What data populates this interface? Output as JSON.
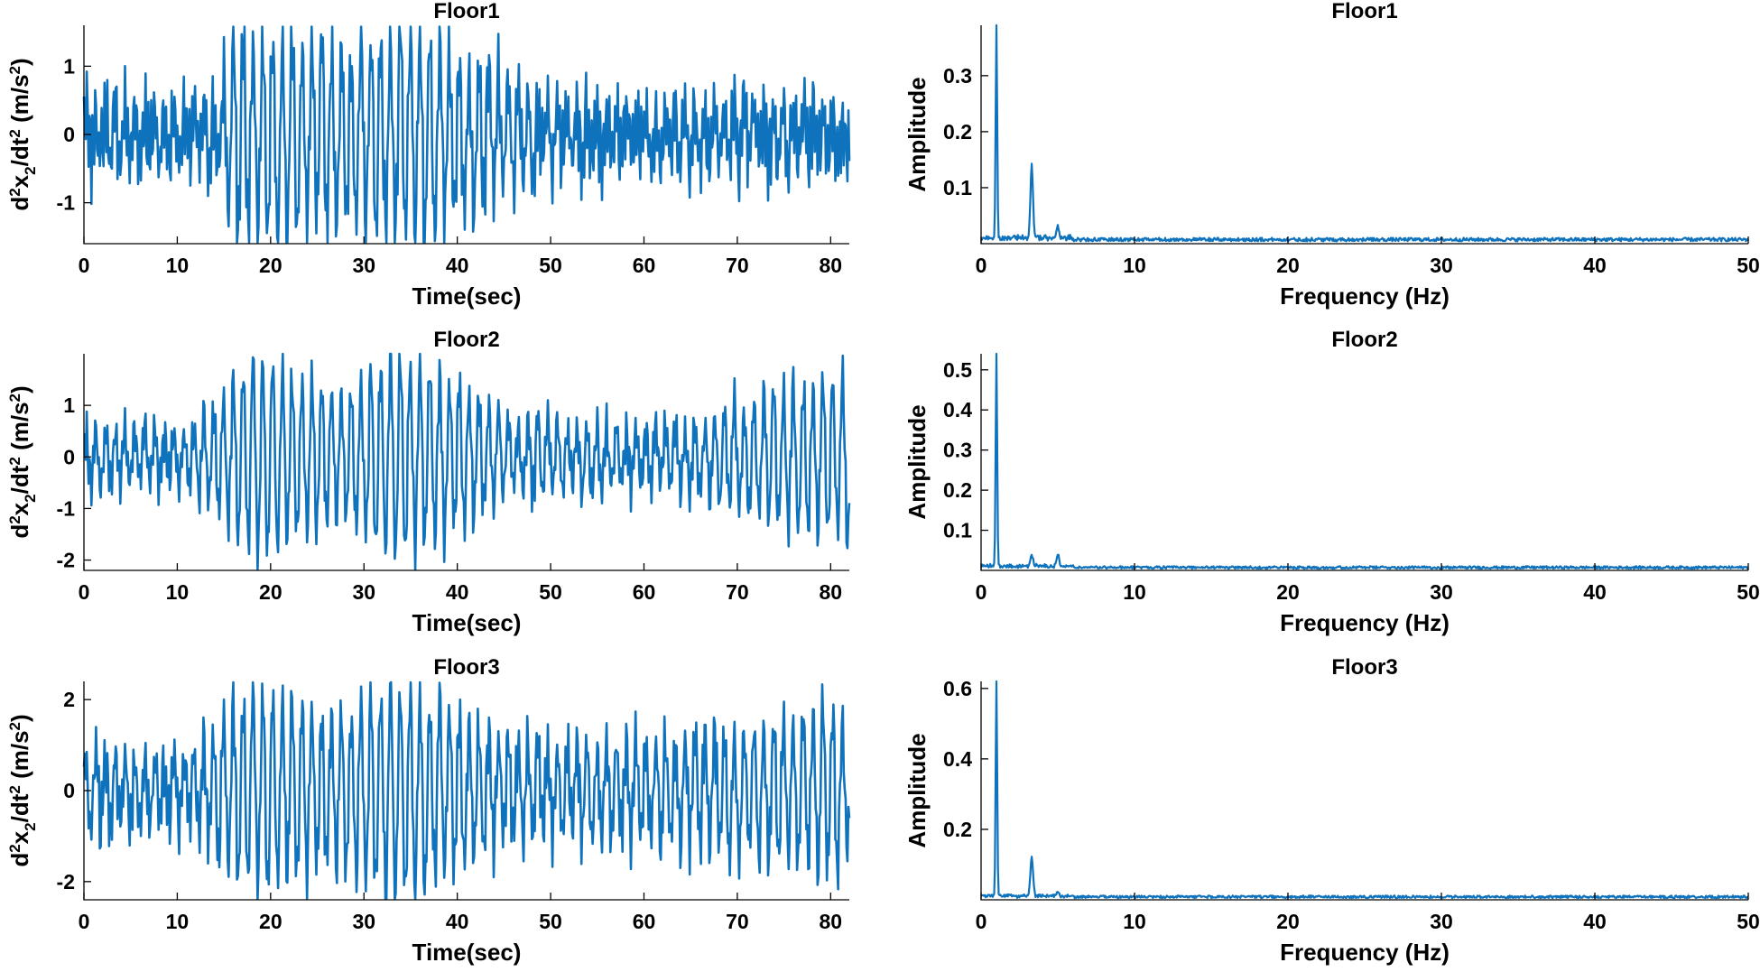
{
  "figure": {
    "series_color": "#0f72bc"
  },
  "chart_data": [
    {
      "id": "time-floor1",
      "type": "line",
      "title": "Floor1",
      "xlabel": "Time(sec)",
      "ylabel": "d^2x_2/dt^2 (m/s^2)",
      "xlim": [
        0,
        82
      ],
      "ylim": [
        -1.6,
        1.6
      ],
      "xticks": [
        0,
        10,
        20,
        30,
        40,
        50,
        60,
        70,
        80
      ],
      "yticks": [
        -1,
        0,
        1
      ],
      "signal": {
        "t_end": 82,
        "samples_per_sec": 10,
        "base_amp": 0.45,
        "dom_freq_hz": 0.95,
        "sec_freq_hz": 3.2,
        "envelope": [
          [
            0,
            0.32
          ],
          [
            14,
            0.32
          ],
          [
            16,
            1.4
          ],
          [
            22,
            1.5
          ],
          [
            27,
            1.1
          ],
          [
            35,
            1.55
          ],
          [
            40,
            1.2
          ],
          [
            46,
            0.6
          ],
          [
            50,
            0.3
          ],
          [
            82,
            0.3
          ]
        ],
        "peak_abs": 1.58
      }
    },
    {
      "id": "freq-floor1",
      "type": "line",
      "title": "Floor1",
      "xlabel": "Frequency (Hz)",
      "ylabel": "Amplitude",
      "xlim": [
        0,
        50
      ],
      "ylim": [
        0,
        0.39
      ],
      "xticks": [
        0,
        10,
        20,
        30,
        40,
        50
      ],
      "yticks": [
        0.1,
        0.2,
        0.3
      ],
      "spectrum": {
        "noise_floor": 0.007,
        "peaks": [
          [
            1.0,
            0.39
          ],
          [
            3.3,
            0.13
          ],
          [
            5.0,
            0.02
          ]
        ]
      }
    },
    {
      "id": "time-floor2",
      "type": "line",
      "title": "Floor2",
      "xlabel": "Time(sec)",
      "ylabel": "d^2x_2/dt^2 (m/s^2)",
      "xlim": [
        0,
        82
      ],
      "ylim": [
        -2.2,
        2.0
      ],
      "xticks": [
        0,
        10,
        20,
        30,
        40,
        50,
        60,
        70,
        80
      ],
      "yticks": [
        -2,
        -1,
        0,
        1
      ],
      "signal": {
        "t_end": 82,
        "samples_per_sec": 10,
        "base_amp": 0.35,
        "dom_freq_hz": 0.95,
        "sec_freq_hz": 3.2,
        "envelope": [
          [
            0,
            0.5
          ],
          [
            10,
            0.45
          ],
          [
            14,
            0.8
          ],
          [
            18,
            1.9
          ],
          [
            24,
            1.4
          ],
          [
            28,
            1.1
          ],
          [
            33,
            1.95
          ],
          [
            40,
            1.4
          ],
          [
            46,
            0.7
          ],
          [
            60,
            0.5
          ],
          [
            66,
            0.6
          ],
          [
            70,
            1.0
          ],
          [
            76,
            1.3
          ],
          [
            82,
            1.6
          ]
        ],
        "peak_abs": 2.18
      }
    },
    {
      "id": "freq-floor2",
      "type": "line",
      "title": "Floor2",
      "xlabel": "Frequency (Hz)",
      "ylabel": "Amplitude",
      "xlim": [
        0,
        50
      ],
      "ylim": [
        0,
        0.54
      ],
      "xticks": [
        0,
        10,
        20,
        30,
        40,
        50
      ],
      "yticks": [
        0.1,
        0.2,
        0.3,
        0.4,
        0.5
      ],
      "spectrum": {
        "noise_floor": 0.007,
        "peaks": [
          [
            1.0,
            0.54
          ],
          [
            3.3,
            0.03
          ],
          [
            5.0,
            0.03
          ]
        ]
      }
    },
    {
      "id": "time-floor3",
      "type": "line",
      "title": "Floor3",
      "xlabel": "Time(sec)",
      "ylabel": "d^2x_2/dt^2 (m/s^2)",
      "xlim": [
        0,
        82
      ],
      "ylim": [
        -2.4,
        2.4
      ],
      "xticks": [
        0,
        10,
        20,
        30,
        40,
        50,
        60,
        70,
        80
      ],
      "yticks": [
        -2,
        0,
        2
      ],
      "signal": {
        "t_end": 82,
        "samples_per_sec": 10,
        "base_amp": 0.5,
        "dom_freq_hz": 0.95,
        "sec_freq_hz": 3.2,
        "envelope": [
          [
            0,
            0.7
          ],
          [
            12,
            0.7
          ],
          [
            16,
            1.8
          ],
          [
            19,
            2.2
          ],
          [
            24,
            1.7
          ],
          [
            28,
            1.6
          ],
          [
            33,
            2.3
          ],
          [
            40,
            1.6
          ],
          [
            46,
            1.0
          ],
          [
            56,
            0.9
          ],
          [
            66,
            1.2
          ],
          [
            72,
            1.4
          ],
          [
            80,
            1.8
          ],
          [
            82,
            1.3
          ]
        ],
        "peak_abs": 2.38
      }
    },
    {
      "id": "freq-floor3",
      "type": "line",
      "title": "Floor3",
      "xlabel": "Frequency (Hz)",
      "ylabel": "Amplitude",
      "xlim": [
        0,
        50
      ],
      "ylim": [
        0,
        0.62
      ],
      "xticks": [
        0,
        10,
        20,
        30,
        40,
        50
      ],
      "yticks": [
        0.2,
        0.4,
        0.6
      ],
      "spectrum": {
        "noise_floor": 0.008,
        "peaks": [
          [
            1.0,
            0.62
          ],
          [
            3.3,
            0.11
          ],
          [
            5.0,
            0.01
          ]
        ]
      }
    }
  ]
}
